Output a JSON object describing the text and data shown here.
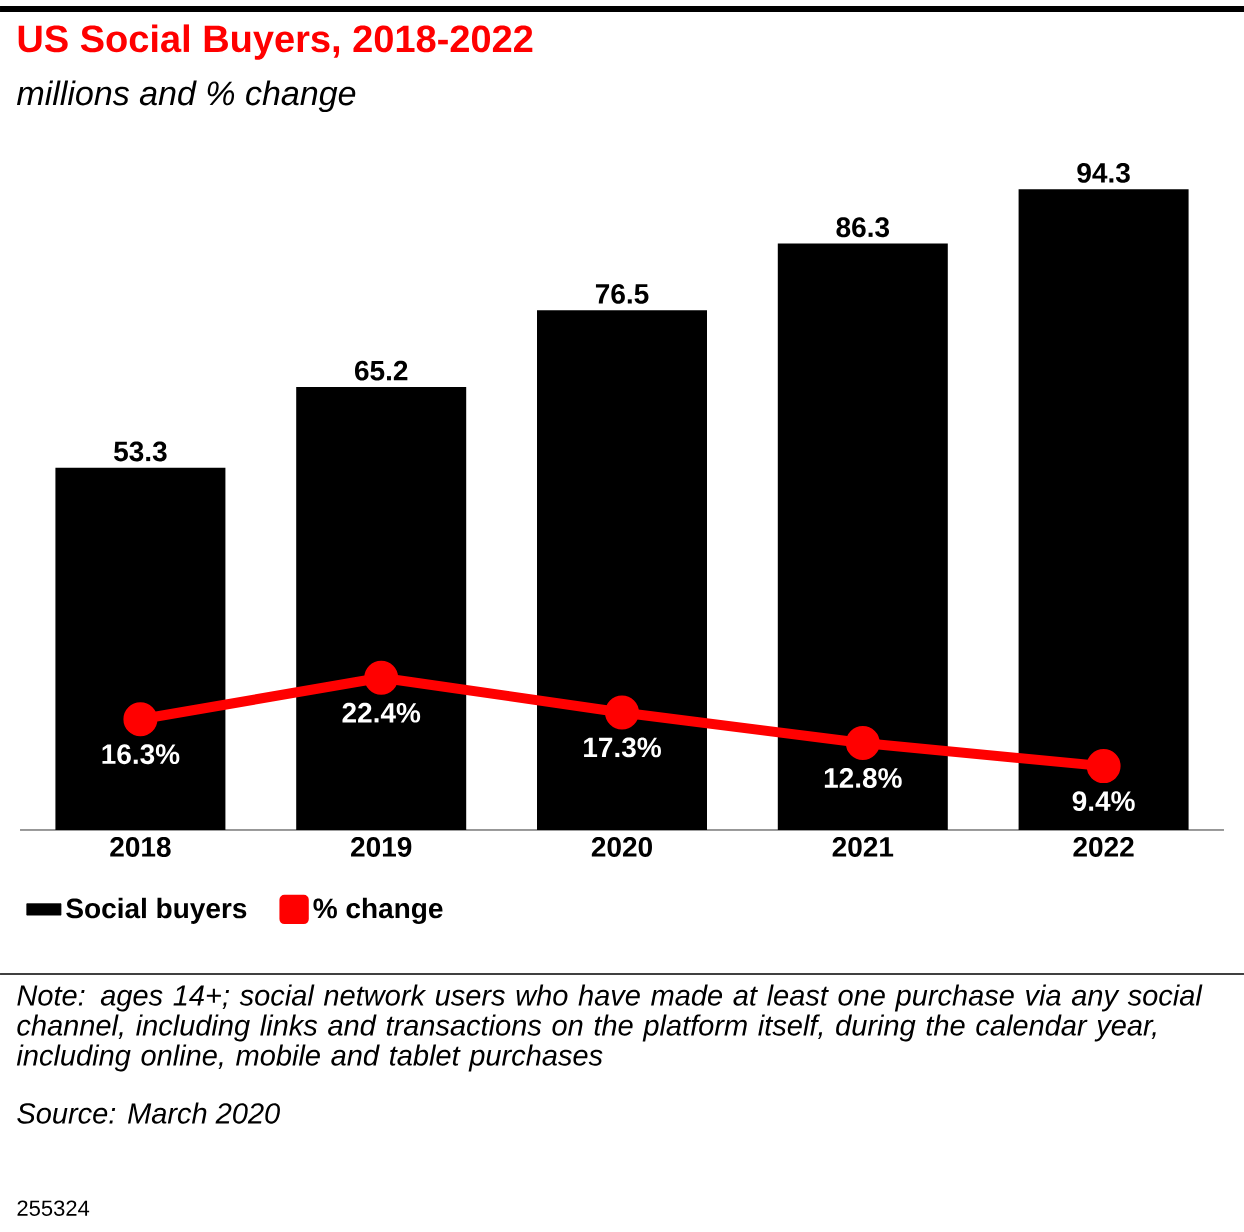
{
  "chart_data": {
    "type": "bar",
    "title": "US Social Buyers, 2018-2022",
    "subtitle": "millions and % change",
    "categories": [
      "2018",
      "2019",
      "2020",
      "2021",
      "2022"
    ],
    "series": [
      {
        "name": "Social buyers",
        "color": "#000000",
        "values": [
          53.3,
          65.2,
          76.5,
          86.3,
          94.3
        ]
      },
      {
        "name": "% change",
        "type": "line",
        "color": "#ff0000",
        "marker": "circle",
        "values": [
          16.3,
          22.4,
          17.3,
          12.8,
          9.4
        ],
        "value_labels": [
          "16.3%",
          "22.4%",
          "17.3%",
          "12.8%",
          "9.4%"
        ]
      }
    ],
    "tick_labels": "x",
    "data_labels": true,
    "legend": "bottom left",
    "grid": false,
    "annotations": [
      "Note: ages 14+; social network users who have made at least one purchase via any social channel, including links and transactions on the platform itself, during the calendar year, including online, mobile and tablet purchases",
      "Source: March 2020",
      "255324"
    ]
  }
}
